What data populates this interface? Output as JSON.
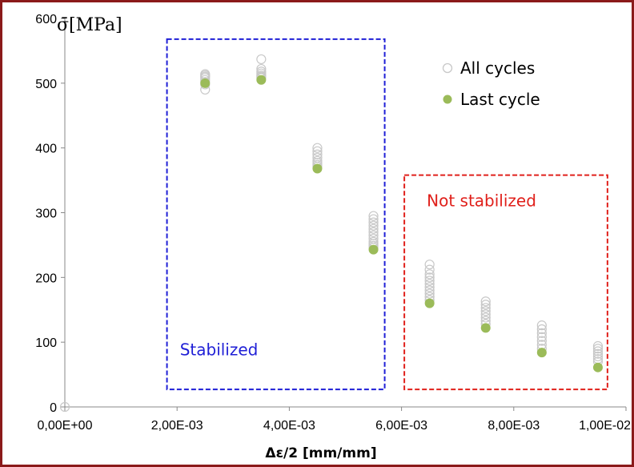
{
  "chart_data": {
    "type": "scatter",
    "xlabel": "Δε/2 [mm/mm]",
    "ylabel": "σ̄[MPa]",
    "xlim": [
      0,
      0.01
    ],
    "ylim": [
      0,
      600
    ],
    "xticks": [
      0,
      0.002,
      0.004,
      0.006,
      0.008,
      0.01
    ],
    "xtick_labels": [
      "0,00E+00",
      "2,00E-03",
      "4,00E-03",
      "6,00E-03",
      "8,00E-03",
      "1,00E-02"
    ],
    "yticks": [
      0,
      100,
      200,
      300,
      400,
      500,
      600
    ],
    "ytick_labels": [
      "0",
      "100",
      "200",
      "300",
      "400",
      "500",
      "600"
    ],
    "grid": false,
    "legend_position": "top-right",
    "series": [
      {
        "name": "All cycles",
        "marker": "open-circle",
        "color": "#c8c8c8",
        "x": [
          0,
          0.0025,
          0.0025,
          0.0025,
          0.0025,
          0.0025,
          0.0025,
          0.0025,
          0.0025,
          0.0035,
          0.0035,
          0.0035,
          0.0035,
          0.0035,
          0.0035,
          0.0035,
          0.0045,
          0.0045,
          0.0045,
          0.0045,
          0.0045,
          0.0045,
          0.0045,
          0.0045,
          0.0055,
          0.0055,
          0.0055,
          0.0055,
          0.0055,
          0.0055,
          0.0055,
          0.0055,
          0.0055,
          0.0055,
          0.0055,
          0.0055,
          0.0065,
          0.0065,
          0.0065,
          0.0065,
          0.0065,
          0.0065,
          0.0065,
          0.0065,
          0.0065,
          0.0065,
          0.0065,
          0.0075,
          0.0075,
          0.0075,
          0.0075,
          0.0075,
          0.0075,
          0.0075,
          0.0075,
          0.0085,
          0.0085,
          0.0085,
          0.0085,
          0.0085,
          0.0085,
          0.0085,
          0.0095,
          0.0095,
          0.0095,
          0.0095,
          0.0095,
          0.0095,
          0.0095
        ],
        "y": [
          0,
          490,
          498,
          502,
          505,
          508,
          510,
          512,
          514,
          537,
          522,
          518,
          515,
          512,
          510,
          508,
          400,
          395,
          390,
          385,
          380,
          377,
          374,
          371,
          295,
          290,
          285,
          280,
          275,
          270,
          265,
          260,
          255,
          252,
          249,
          246,
          220,
          212,
          205,
          200,
          195,
          190,
          185,
          180,
          175,
          170,
          165,
          163,
          158,
          153,
          148,
          143,
          138,
          133,
          128,
          126,
          120,
          114,
          108,
          102,
          96,
          90,
          94,
          90,
          86,
          82,
          78,
          74,
          70
        ]
      },
      {
        "name": "Last cycle",
        "marker": "filled-circle",
        "color": "#9bbb59",
        "x": [
          0.0025,
          0.0035,
          0.0045,
          0.0055,
          0.0065,
          0.0075,
          0.0085,
          0.0095
        ],
        "y": [
          500,
          505,
          368,
          243,
          160,
          122,
          84,
          61
        ]
      }
    ],
    "annotations": [
      {
        "text": "Stabilized",
        "color": "#1f1fd6",
        "box_color": "#1f1fd6",
        "x_range": [
          0.00182,
          0.0057
        ],
        "y_range": [
          27,
          568
        ],
        "label_at": [
          0.00205,
          80
        ]
      },
      {
        "text": "Not stabilized",
        "color": "#e0201b",
        "box_color": "#e0201b",
        "x_range": [
          0.00605,
          0.00967
        ],
        "y_range": [
          27,
          358
        ],
        "label_at": [
          0.00645,
          310
        ]
      }
    ]
  }
}
